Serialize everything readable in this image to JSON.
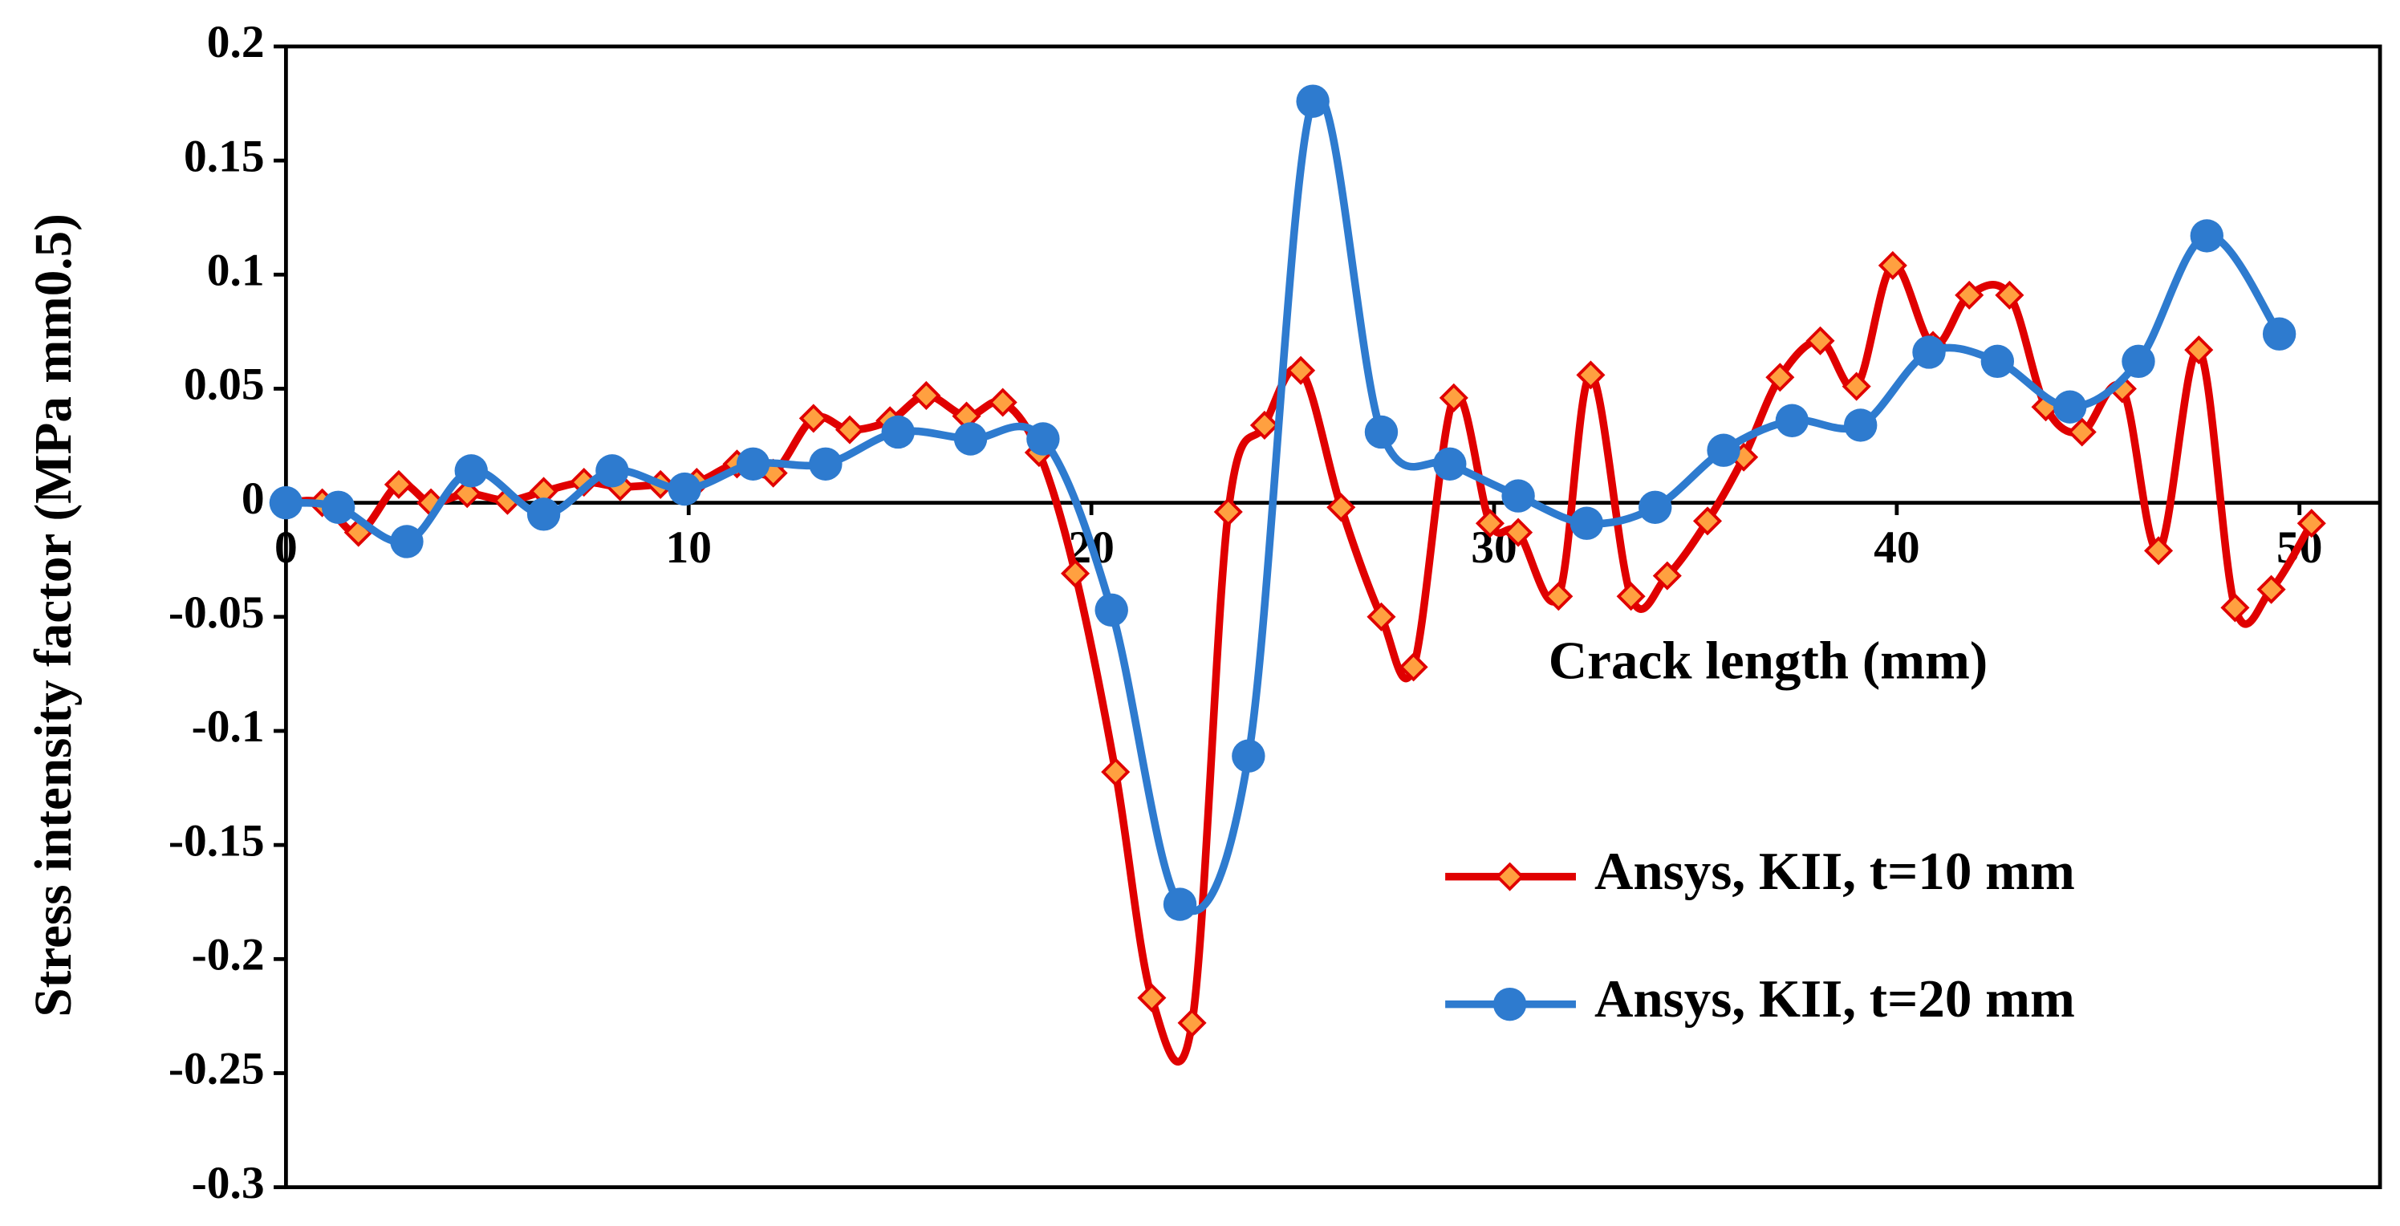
{
  "chart_data": {
    "type": "line",
    "x_label": "Crack length (mm)",
    "y_label": "Stress intensity factor (MPa mm0.5)",
    "xlim": [
      0,
      52
    ],
    "xticks": [
      0,
      10,
      20,
      30,
      40,
      50
    ],
    "ylim": [
      -0.3,
      0.2
    ],
    "yticks": [
      0.2,
      0.15,
      0.1,
      0.05,
      0,
      -0.05,
      -0.1,
      -0.15,
      -0.2,
      -0.25,
      -0.3
    ],
    "legend": "lower right",
    "series": [
      {
        "name": "Ansys, KII, t=10 mm",
        "color": "#e00000",
        "marker": "diamond",
        "marker_fill": "#ffa040",
        "x": [
          0,
          0.9,
          1.8,
          2.8,
          3.6,
          4.5,
          5.5,
          6.4,
          7.4,
          8.3,
          9.3,
          10.2,
          11.2,
          12.1,
          13.1,
          14,
          15,
          15.9,
          16.9,
          17.8,
          18.7,
          19.6,
          20.6,
          21.5,
          22.5,
          23.4,
          24.3,
          25.2,
          26.2,
          27.2,
          28,
          29,
          29.9,
          30.6,
          31.6,
          32.4,
          33.4,
          34.3,
          35.3,
          36.2,
          37.1,
          38.1,
          39,
          39.9,
          40.9,
          41.8,
          42.8,
          43.7,
          44.6,
          45.6,
          46.5,
          47.5,
          48.4,
          49.3,
          50.3
        ],
        "values": [
          0,
          0,
          -0.013,
          0.008,
          0,
          0.004,
          0.001,
          0.005,
          0.009,
          0.007,
          0.008,
          0.009,
          0.017,
          0.013,
          0.037,
          0.032,
          0.036,
          0.047,
          0.038,
          0.044,
          0.022,
          -0.031,
          -0.118,
          -0.217,
          -0.228,
          -0.004,
          0.034,
          0.058,
          -0.002,
          -0.05,
          -0.072,
          0.046,
          -0.009,
          -0.013,
          -0.041,
          0.056,
          -0.041,
          -0.032,
          -0.008,
          0.02,
          0.055,
          0.071,
          0.051,
          0.104,
          0.069,
          0.091,
          0.091,
          0.042,
          0.031,
          0.05,
          -0.021,
          0.067,
          -0.046,
          -0.038,
          -0.009
        ]
      },
      {
        "name": "Ansys, KII, t=20 mm",
        "color": "#2e7bcf",
        "marker": "circle",
        "marker_fill": "#2e7bcf",
        "x": [
          0,
          1.3,
          3,
          4.6,
          6.4,
          8.1,
          9.9,
          11.6,
          13.4,
          15.2,
          17,
          18.8,
          20.5,
          22.2,
          23.9,
          25.5,
          27.2,
          28.9,
          30.6,
          32.3,
          34,
          35.7,
          37.4,
          39.1,
          40.8,
          42.5,
          44.3,
          46,
          47.7,
          49.5
        ],
        "values": [
          0,
          -0.002,
          -0.017,
          0.014,
          -0.005,
          0.014,
          0.006,
          0.017,
          0.017,
          0.031,
          0.028,
          0.028,
          -0.047,
          -0.176,
          -0.111,
          0.176,
          0.031,
          0.017,
          0.003,
          -0.009,
          -0.002,
          0.023,
          0.036,
          0.034,
          0.066,
          0.062,
          0.042,
          0.062,
          0.117,
          0.074
        ]
      }
    ]
  }
}
